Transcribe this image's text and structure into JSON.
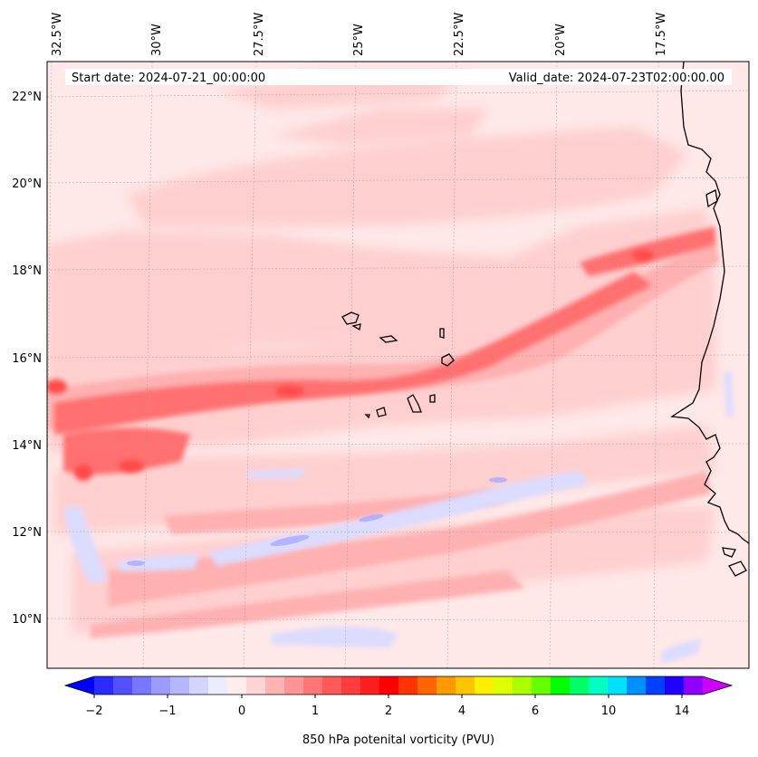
{
  "header": {
    "start_date": "Start date: 2024-07-21_00:00:00",
    "valid_date": "Valid_date: 2024-07-23T02:00:00.00"
  },
  "map": {
    "lon_labels": [
      "32.5°W",
      "30°W",
      "27.5°W",
      "25°W",
      "22.5°W",
      "20°W",
      "17.5°W"
    ],
    "lat_labels": [
      "22°N",
      "20°N",
      "18°N",
      "16°N",
      "14°N",
      "12°N",
      "10°N"
    ],
    "gridlines": "dashed"
  },
  "colorbar": {
    "ticks": [
      "−2",
      "−1",
      "0",
      "1",
      "2",
      "4",
      "6",
      "10",
      "14"
    ],
    "label": "850 hPa potenital vorticity (PVU)",
    "colors": [
      "#0000ff",
      "#2b2bff",
      "#5050ff",
      "#7777ff",
      "#9c9cff",
      "#b6b6ff",
      "#d4d4ff",
      "#ececff",
      "#ffecec",
      "#ffd4d4",
      "#ffb3b3",
      "#ff9494",
      "#ff7676",
      "#ff5a5a",
      "#ff3d3d",
      "#ff1e1e",
      "#ff0000",
      "#ff3300",
      "#ff6600",
      "#ff9900",
      "#ffc400",
      "#ffee00",
      "#ddff00",
      "#aaff00",
      "#66ff00",
      "#00ff00",
      "#00ff66",
      "#00ffc0",
      "#00e0ff",
      "#0090ff",
      "#0040ff",
      "#2000ff",
      "#9000ff",
      "#d000ff"
    ]
  }
}
